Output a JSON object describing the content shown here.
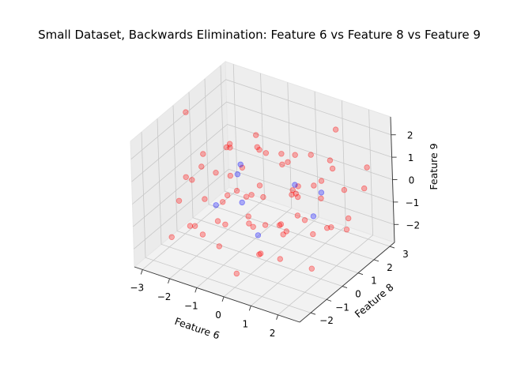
{
  "chart_data": {
    "type": "scatter",
    "title": "Small Dataset, Backwards Elimination: Feature 6 vs Feature 8 vs Feature 9",
    "xlabel": "Feature 6",
    "ylabel": "Feature 8",
    "zlabel": "Feature 9",
    "xlim": [
      -3.3,
      2.8
    ],
    "ylim": [
      -2.7,
      3.3
    ],
    "zlim": [
      -2.8,
      2.8
    ],
    "xticks": [
      "−3",
      "−2",
      "−1",
      "0",
      "1",
      "2"
    ],
    "yticks": [
      "−2",
      "−1",
      "0",
      "1",
      "2",
      "3"
    ],
    "zticks": [
      "−2",
      "−1",
      "0",
      "1",
      "2"
    ],
    "grid": true,
    "point_alpha": 0.3,
    "series": [
      {
        "color": "#ff0000",
        "points": [
          [
            -2.6,
            -1.5,
            -1.9
          ],
          [
            -2.2,
            -0.8,
            0.4
          ],
          [
            -1.9,
            -1.2,
            -1.3
          ],
          [
            -1.5,
            0.2,
            -0.6
          ],
          [
            -1.2,
            -0.9,
            -2.1
          ],
          [
            -1.0,
            1.3,
            1.1
          ],
          [
            -0.8,
            -1.6,
            -0.4
          ],
          [
            -0.5,
            0.6,
            1.6
          ],
          [
            -0.3,
            -0.3,
            0.2
          ],
          [
            0.1,
            1.8,
            0.9
          ],
          [
            0.4,
            -1.1,
            -1.7
          ],
          [
            0.7,
            0.9,
            -0.2
          ],
          [
            1.0,
            -0.5,
            2.2
          ],
          [
            1.3,
            2.1,
            0.6
          ],
          [
            1.6,
            -1.8,
            -1.0
          ],
          [
            1.9,
            0.4,
            1.3
          ],
          [
            2.2,
            1.5,
            -0.9
          ],
          [
            -2.8,
            0.8,
            -0.2
          ],
          [
            -1.7,
            2.4,
            0.7
          ],
          [
            -0.9,
            -2.2,
            0.9
          ],
          [
            0.0,
            0.0,
            -1.2
          ],
          [
            0.6,
            -2.0,
            0.3
          ],
          [
            1.1,
            2.7,
            1.9
          ],
          [
            1.8,
            -0.2,
            -2.3
          ],
          [
            2.4,
            2.2,
            0.1
          ],
          [
            -2.4,
            1.9,
            -1.1
          ],
          [
            -1.3,
            -0.1,
            1.8
          ],
          [
            -0.2,
            1.2,
            -2.0
          ],
          [
            0.9,
            0.2,
            0.4
          ],
          [
            2.0,
            -1.3,
            0.8
          ],
          [
            -1.1,
            0.7,
            -0.8
          ],
          [
            -0.6,
            -0.7,
            0.5
          ],
          [
            0.3,
            1.6,
            -0.3
          ],
          [
            1.4,
            0.6,
            -1.4
          ],
          [
            -2.0,
            -0.4,
            1.4
          ],
          [
            -0.4,
            2.6,
            -1.5
          ],
          [
            0.8,
            -1.4,
            1.2
          ],
          [
            1.5,
            1.0,
            0.0
          ],
          [
            -1.6,
            -2.0,
            -0.7
          ],
          [
            2.3,
            0.0,
            -0.4
          ],
          [
            -0.1,
            -1.7,
            -2.4
          ],
          [
            -2.9,
            0.1,
            2.6
          ],
          [
            -1.4,
            1.0,
            0.2
          ],
          [
            0.5,
            0.3,
            2.0
          ],
          [
            1.2,
            -0.9,
            -0.6
          ],
          [
            -0.7,
            0.4,
            -1.8
          ],
          [
            2.1,
            2.9,
            0.5
          ],
          [
            -2.3,
            -1.0,
            0.6
          ],
          [
            0.2,
            -0.6,
            1.0
          ],
          [
            1.7,
            1.3,
            1.6
          ],
          [
            -1.8,
            0.5,
            -2.2
          ],
          [
            -0.3,
            2.0,
            0.3
          ],
          [
            0.9,
            -0.2,
            -1.0
          ],
          [
            1.3,
            1.9,
            -1.9
          ],
          [
            -1.0,
            -1.3,
            1.5
          ],
          [
            2.5,
            0.8,
            0.9
          ],
          [
            -2.5,
            2.1,
            0.0
          ],
          [
            0.4,
            2.4,
            -0.7
          ],
          [
            -1.2,
            -0.6,
            -0.3
          ],
          [
            1.9,
            -0.7,
            0.2
          ],
          [
            -0.8,
            1.5,
            0.8
          ],
          [
            0.7,
            -1.5,
            -1.3
          ],
          [
            -1.9,
            1.1,
            1.0
          ],
          [
            1.0,
            0.1,
            0.7
          ],
          [
            -0.5,
            -0.2,
            -0.9
          ],
          [
            2.0,
            1.7,
            -1.6
          ],
          [
            -2.1,
            -1.8,
            0.1
          ],
          [
            0.1,
            0.8,
            -1.6
          ],
          [
            1.6,
            0.3,
            2.4
          ],
          [
            -1.5,
            -1.4,
            -1.4
          ]
        ]
      },
      {
        "color": "#0000ff",
        "points": [
          [
            -1.4,
            0.9,
            0.4
          ],
          [
            -0.6,
            -0.4,
            -0.2
          ],
          [
            0.6,
            0.9,
            0.3
          ],
          [
            1.4,
            1.2,
            0.1
          ],
          [
            -1.1,
            0.2,
            0.5
          ],
          [
            0.2,
            -0.8,
            -1.1
          ],
          [
            1.5,
            0.5,
            -0.5
          ],
          [
            -2.0,
            0.3,
            -1.3
          ]
        ]
      }
    ]
  }
}
